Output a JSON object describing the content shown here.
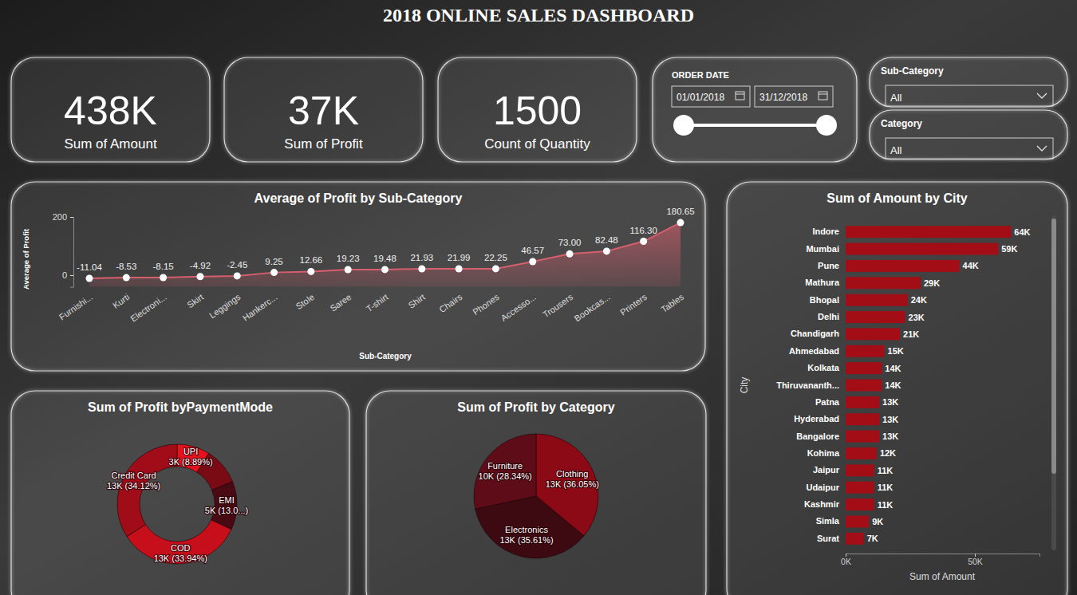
{
  "title": "2018 ONLINE SALES DASHBOARD",
  "cards": [
    {
      "value": "438K",
      "label": "Sum of Amount"
    },
    {
      "value": "37K",
      "label": "Sum of Profit"
    },
    {
      "value": "1500",
      "label": "Count of Quantity"
    }
  ],
  "filters": {
    "date": {
      "label": "ORDER DATE",
      "start": "01/01/2018",
      "end": "31/12/2018"
    },
    "dropdowns": [
      {
        "label": "Sub-Category",
        "value": "All"
      },
      {
        "label": "Category",
        "value": "All"
      }
    ]
  },
  "chart_data": [
    {
      "type": "area",
      "title": "Average of Profit by Sub-Category",
      "x_label": "Sub-Category",
      "y_label": "Average of Profit",
      "categories": [
        "Furnishi...",
        "Kurti",
        "Electroni...",
        "Skirt",
        "Leggings",
        "Hankerc...",
        "Stole",
        "Saree",
        "T-shirt",
        "Shirt",
        "Chairs",
        "Phones",
        "Accesso...",
        "Trousers",
        "Bookcas...",
        "Printers",
        "Tables"
      ],
      "values": [
        -11.04,
        -8.53,
        -8.15,
        -4.92,
        -2.45,
        9.25,
        12.66,
        19.23,
        19.48,
        21.93,
        21.99,
        22.25,
        46.57,
        73.0,
        82.48,
        116.3,
        180.65
      ],
      "value_labels": [
        "-11.04",
        "-8.53",
        "-8.15",
        "-4.92",
        "-2.45",
        "9.25",
        "12.66",
        "19.23",
        "19.48",
        "21.93",
        "21.99",
        "22.25",
        "46.57",
        "73.00",
        "82.48",
        "116.30",
        "180.65"
      ],
      "data_labels": true,
      "color": "#d65f6d",
      "marker": "circle",
      "ylim": [
        -40,
        200
      ],
      "yticks": [
        0,
        200
      ],
      "grid": false
    },
    {
      "type": "donut",
      "title": "Sum of Profit byPaymentMode",
      "categories": [
        "UPI",
        null,
        "EMI",
        "COD",
        "Credit Card"
      ],
      "values": [
        8.89,
        10.0,
        13.05,
        33.94,
        34.12
      ],
      "value_labels": [
        "3K (8.89%)",
        null,
        "5K (13.0...)",
        "13K (33.94%)",
        "13K (34.12%)"
      ],
      "colors": [
        "#e3121d",
        "#7a0a14",
        "#4a0a14",
        "#c70f1c",
        "#a00c17"
      ],
      "data_labels": true
    },
    {
      "type": "pie",
      "title": "Sum of Profit by Category",
      "categories": [
        "Clothing",
        "Electronics",
        "Furniture"
      ],
      "values": [
        36.05,
        35.61,
        28.34
      ],
      "value_labels": [
        "13K (36.05%)",
        "13K (35.61%)",
        "10K (28.34%)"
      ],
      "colors": [
        "#8c0a15",
        "#3d0a12",
        "#5e0c18"
      ],
      "data_labels": true
    },
    {
      "type": "bar",
      "orientation": "horizontal",
      "title": "Sum of Amount by City",
      "x_label": "Sum of Amount",
      "y_label": "City",
      "categories": [
        "Indore",
        "Mumbai",
        "Pune",
        "Mathura",
        "Bhopal",
        "Delhi",
        "Chandigarh",
        "Ahmedabad",
        "Kolkata",
        "Thiruvananth...",
        "Patna",
        "Hyderabad",
        "Bangalore",
        "Kohima",
        "Jaipur",
        "Udaipur",
        "Kashmir",
        "Simla",
        "Surat"
      ],
      "values": [
        64000,
        59000,
        44000,
        29000,
        24000,
        23000,
        21000,
        15000,
        14000,
        14000,
        13000,
        13000,
        13000,
        12000,
        11000,
        11000,
        11000,
        9000,
        7000
      ],
      "value_labels": [
        "64K",
        "59K",
        "44K",
        "29K",
        "24K",
        "23K",
        "21K",
        "15K",
        "14K",
        "14K",
        "13K",
        "13K",
        "13K",
        "12K",
        "11K",
        "11K",
        "11K",
        "9K",
        "7K"
      ],
      "xlim": [
        0,
        75000
      ],
      "xticks": [
        {
          "value": 0,
          "label": "0K"
        },
        {
          "value": 50000,
          "label": "50K"
        }
      ],
      "color": "#a30d16",
      "data_labels": true,
      "grid": false
    }
  ]
}
